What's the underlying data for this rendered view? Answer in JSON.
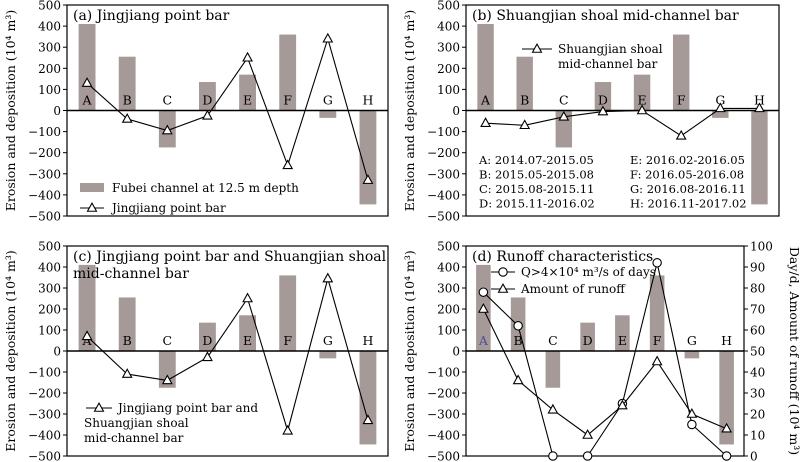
{
  "chart_data": [
    {
      "type": "bar",
      "title": "(a) Jingjiang point bar",
      "ylabel": "Erosion and deposition (10⁴ m³)",
      "ylim": [
        -500,
        500
      ],
      "yticks": [
        "500",
        "400",
        "300",
        "200",
        "100",
        "0",
        "−100",
        "−200",
        "−300",
        "−400",
        "−500"
      ],
      "categories": [
        "A",
        "B",
        "C",
        "D",
        "E",
        "F",
        "G",
        "H"
      ],
      "series": [
        {
          "name": "Fubei channel at 12.5 m depth",
          "kind": "bar",
          "color": "#a69a99",
          "values": [
            410,
            255,
            -175,
            135,
            170,
            360,
            -35,
            -445
          ]
        },
        {
          "name": "Jingjiang point bar",
          "kind": "line",
          "marker": "triangle",
          "values": [
            130,
            -40,
            -95,
            -25,
            250,
            -260,
            340,
            -330
          ]
        }
      ],
      "legend": {
        "position": "bottom-left",
        "items": [
          "Fubei channel at 12.5 m depth",
          "Jingjiang point bar"
        ]
      }
    },
    {
      "type": "bar",
      "title": "(b) Shuangjian shoal mid-channel bar",
      "ylabel": "Erosion and deposition (10⁴ m³)",
      "ylim": [
        -500,
        500
      ],
      "yticks": [
        "500",
        "400",
        "300",
        "200",
        "100",
        "0",
        "−100",
        "−200",
        "−300",
        "−400",
        "−500"
      ],
      "categories": [
        "A",
        "B",
        "C",
        "D",
        "E",
        "F",
        "G",
        "H"
      ],
      "series": [
        {
          "name": "Fubei channel at 12.5 m depth",
          "kind": "bar",
          "color": "#a69a99",
          "values": [
            410,
            255,
            -175,
            135,
            170,
            360,
            -35,
            -445
          ]
        },
        {
          "name": "Shuangjian shoal mid-channel bar",
          "kind": "line",
          "marker": "triangle",
          "values": [
            -60,
            -70,
            -30,
            -5,
            0,
            -120,
            10,
            10
          ]
        }
      ],
      "legend": {
        "position": "top-center",
        "items": [
          "Shuangjian shoal mid-channel bar"
        ]
      },
      "period_notes": [
        "A: 2014.07-2015.05",
        "E: 2016.02-2016.05",
        "B: 2015.05-2015.08",
        "F: 2016.05-2016.08",
        "C: 2015.08-2015.11",
        "G: 2016.08-2016.11",
        "D: 2015.11-2016.02",
        "H: 2016.11-2017.02"
      ]
    },
    {
      "type": "bar",
      "title": "(c) Jingjiang point bar and Shuangjian shoal mid-channel bar",
      "title_lines": [
        "(c) Jingjiang point bar and Shuangjian shoal",
        "mid-channel bar"
      ],
      "ylabel": "Erosion and deposition (10⁴ m³)",
      "ylim": [
        -500,
        500
      ],
      "yticks": [
        "500",
        "400",
        "300",
        "200",
        "100",
        "0",
        "−100",
        "−200",
        "−300",
        "−400",
        "−500"
      ],
      "categories": [
        "A",
        "B",
        "C",
        "D",
        "E",
        "F",
        "G",
        "H"
      ],
      "series": [
        {
          "name": "Fubei channel at 12.5 m depth",
          "kind": "bar",
          "color": "#a69a99",
          "values": [
            410,
            255,
            -175,
            135,
            170,
            360,
            -35,
            -445
          ]
        },
        {
          "name": "Jingjiang point bar and Shuangjian shoal mid-channel bar",
          "kind": "line",
          "marker": "triangle",
          "values": [
            70,
            -110,
            -140,
            -30,
            250,
            -380,
            345,
            -330
          ]
        }
      ],
      "legend": {
        "position": "bottom-left",
        "items": [
          "Jingjiang point bar and Shuangjian shoal mid-channel bar"
        ],
        "item_lines": [
          "Jingjiang point bar and",
          "Shuangjian shoal",
          "mid-channel bar"
        ]
      }
    },
    {
      "type": "bar",
      "title": "(d) Runoff characteristics",
      "ylabel": "Erosion and deposition (10⁴ m³)",
      "y2label": "Day/d, Amount of runoff (10⁴ m³)",
      "ylim": [
        -500,
        500
      ],
      "y2lim": [
        0,
        100
      ],
      "yticks": [
        "500",
        "400",
        "300",
        "200",
        "100",
        "0",
        "−100",
        "−200",
        "−300",
        "−400",
        "−500"
      ],
      "y2ticks": [
        "100",
        "90",
        "80",
        "70",
        "60",
        "50",
        "40",
        "30",
        "20",
        "10",
        "0"
      ],
      "categories": [
        "A",
        "B",
        "C",
        "D",
        "E",
        "F",
        "G",
        "H"
      ],
      "series": [
        {
          "name": "Fubei channel at 12.5 m depth",
          "kind": "bar",
          "color": "#a69a99",
          "values": [
            410,
            255,
            -175,
            135,
            170,
            360,
            -35,
            -445
          ]
        },
        {
          "name": "Q>4×10⁴ m³/s of days",
          "kind": "line",
          "marker": "circle",
          "axis": "y2",
          "values": [
            78,
            62,
            0,
            0,
            25,
            92,
            15,
            0
          ]
        },
        {
          "name": "Amount of runoff",
          "kind": "line",
          "marker": "triangle",
          "axis": "y2",
          "values": [
            70,
            36,
            22,
            10,
            24,
            45,
            20,
            13
          ]
        }
      ],
      "legend": {
        "position": "top-center",
        "items": [
          "Q>4×10⁴ m³/s of days",
          "Amount of runoff"
        ]
      }
    }
  ]
}
